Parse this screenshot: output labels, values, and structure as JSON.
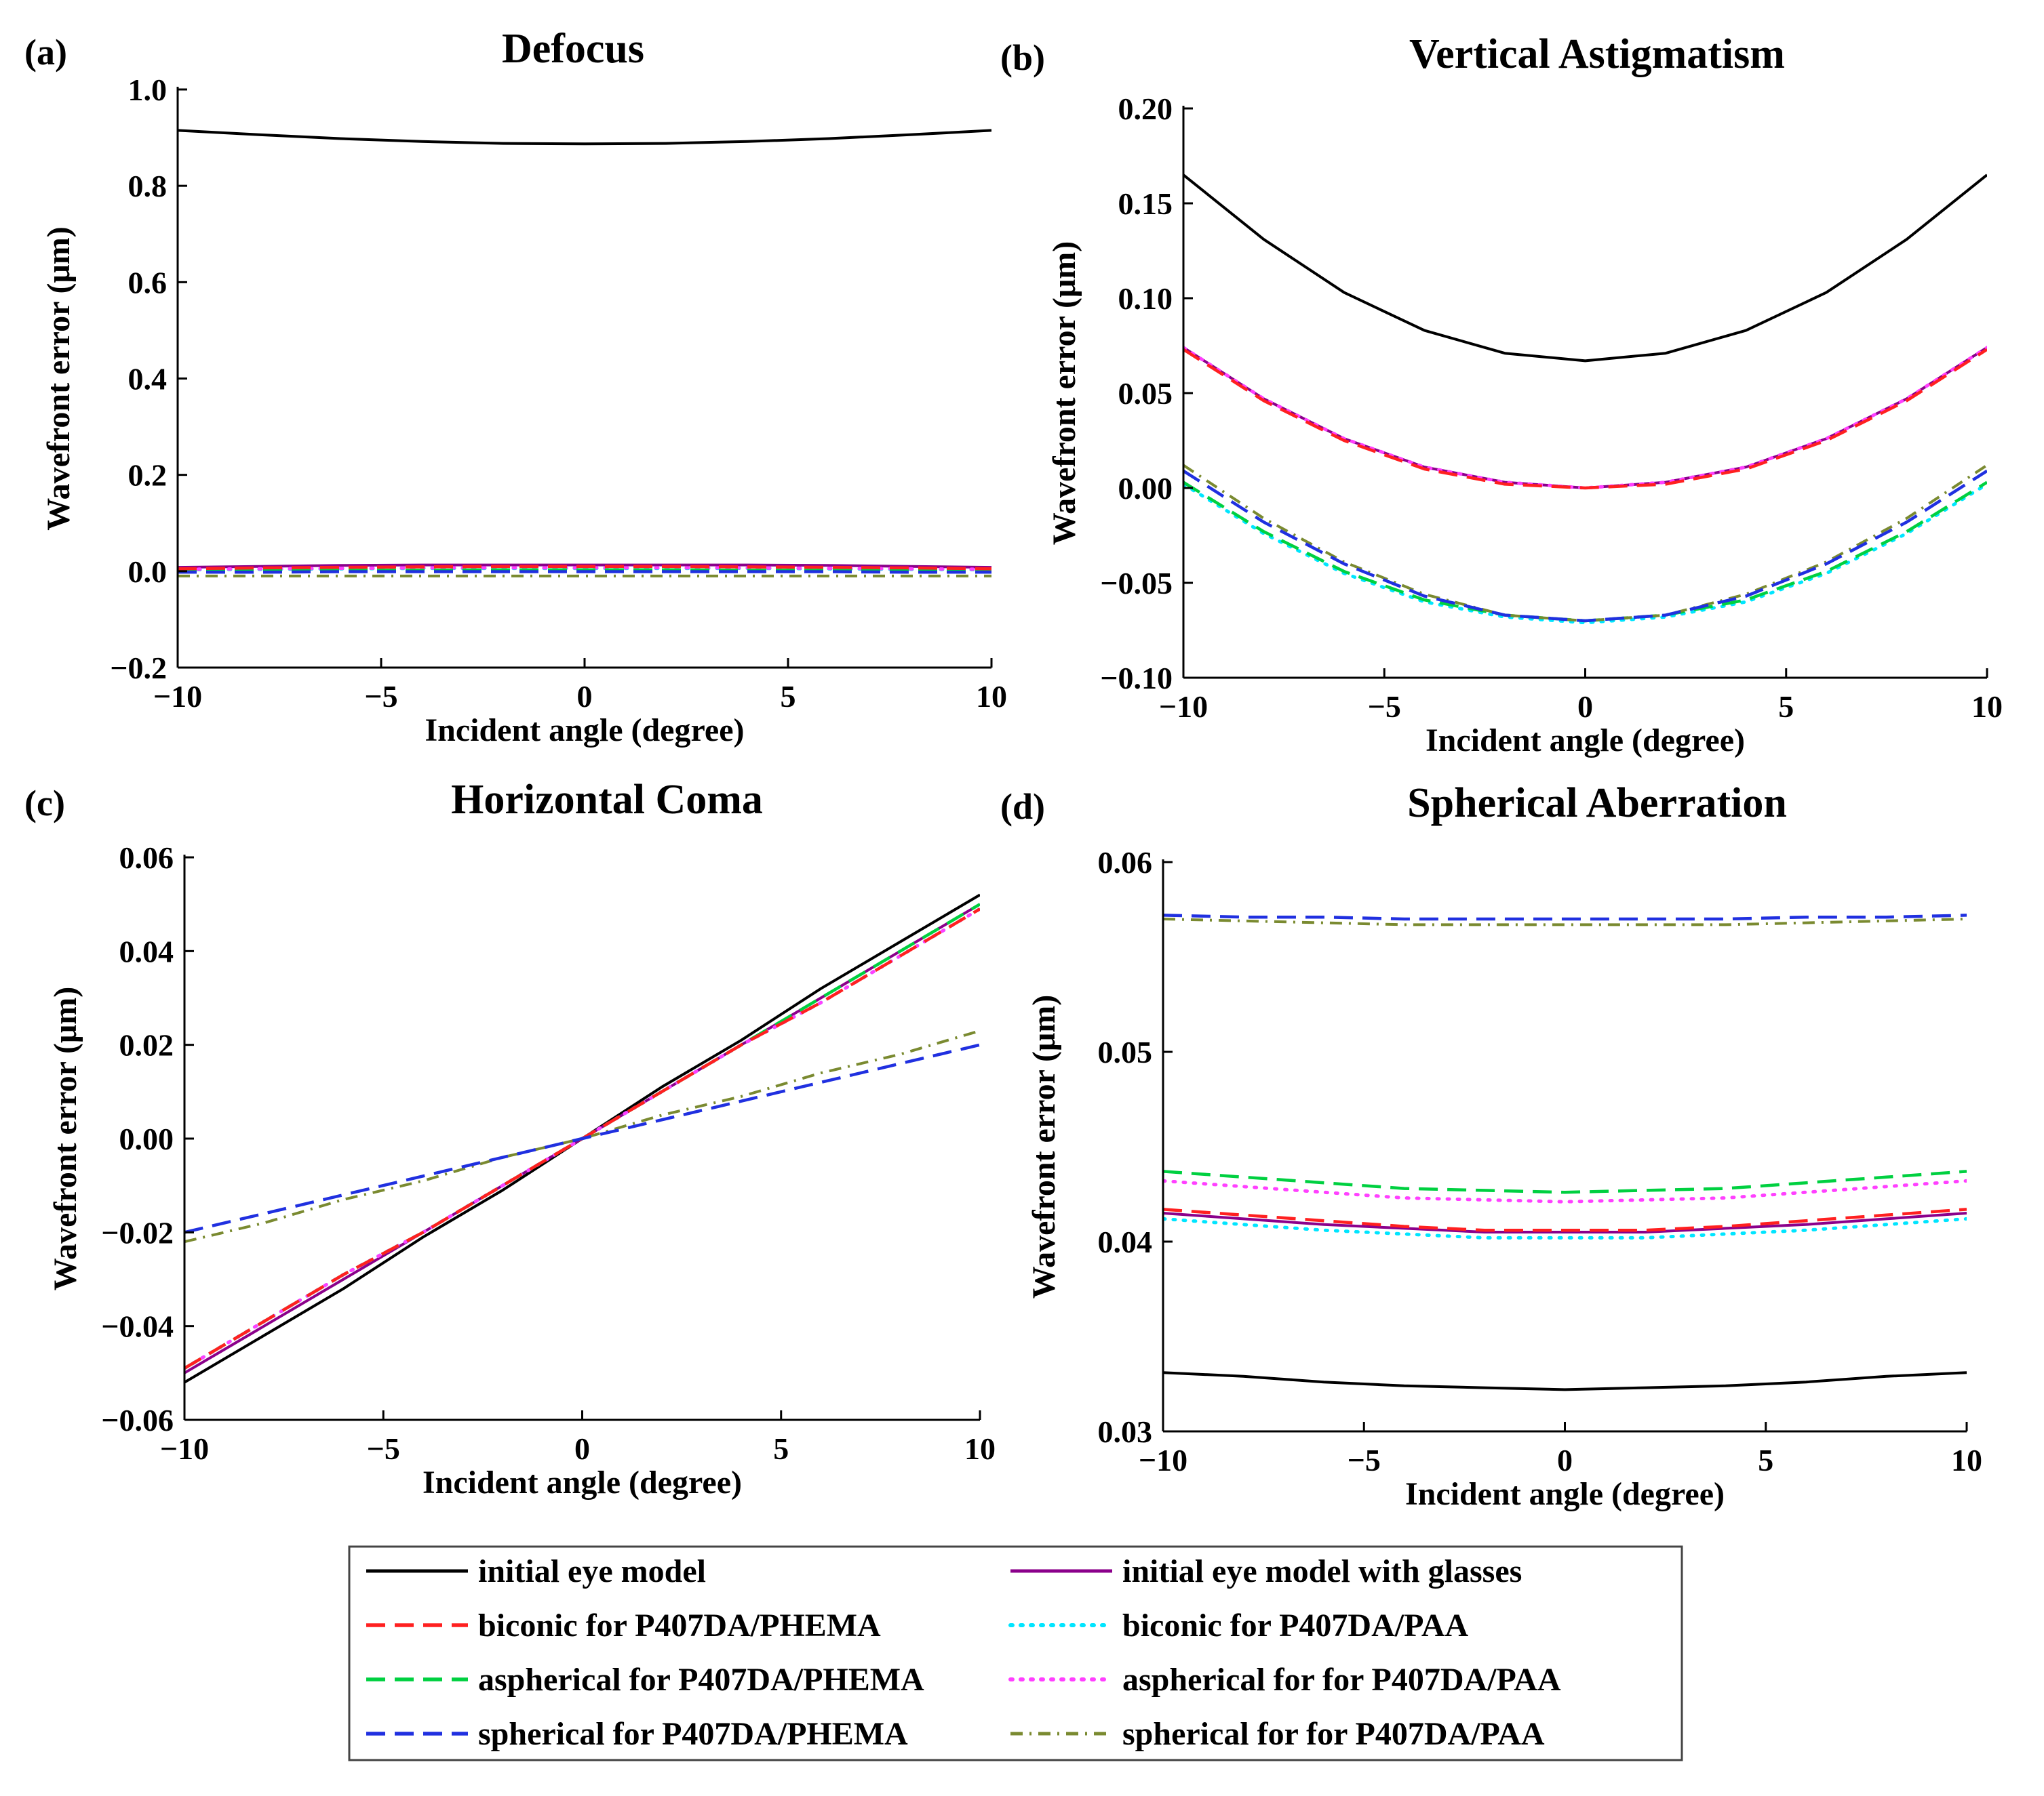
{
  "figure": {
    "x_label_shared": "Incident angle (degree)",
    "y_label_shared": "Wavefront error (μm)"
  },
  "legend": [
    {
      "key": "initial",
      "label": "initial eye model",
      "color": "#000000",
      "style": "solid"
    },
    {
      "key": "glasses",
      "label": "initial eye model with glasses",
      "color": "#8B008B",
      "style": "solid"
    },
    {
      "key": "biconic_phema",
      "label": "biconic for P407DA/PHEMA",
      "color": "#FF2020",
      "style": "dash"
    },
    {
      "key": "biconic_paa",
      "label": "biconic for P407DA/PAA",
      "color": "#00E5FF",
      "style": "dot"
    },
    {
      "key": "aspherical_phema",
      "label": "aspherical for P407DA/PHEMA",
      "color": "#00D040",
      "style": "dash"
    },
    {
      "key": "aspherical_paa",
      "label": "aspherical for for P407DA/PAA",
      "color": "#FF40FF",
      "style": "dot"
    },
    {
      "key": "spherical_phema",
      "label": "spherical for P407DA/PHEMA",
      "color": "#2030E0",
      "style": "dash"
    },
    {
      "key": "spherical_paa",
      "label": "spherical for for P407DA/PAA",
      "color": "#7A8A30",
      "style": "dashdot"
    }
  ],
  "chart_data": [
    {
      "id": "a",
      "letter": "(a)",
      "type": "line",
      "title": "Defocus",
      "xlabel": "Incident angle (degree)",
      "ylabel": "Wavefront error (μm)",
      "xlim": [
        -10,
        10
      ],
      "ylim": [
        -0.2,
        1.0
      ],
      "xticks": [
        -10,
        -5,
        0,
        5,
        10
      ],
      "xtick_labels": [
        "−10",
        "−5",
        "0",
        "5",
        "10"
      ],
      "yticks": [
        -0.2,
        0.0,
        0.2,
        0.4,
        0.6,
        0.8,
        1.0
      ],
      "ytick_labels": [
        "−0.2",
        "0.0",
        "0.2",
        "0.4",
        "0.6",
        "0.8",
        "1.0"
      ],
      "x": [
        -10,
        -8,
        -6,
        -4,
        -2,
        0,
        2,
        4,
        6,
        8,
        10
      ],
      "series": [
        {
          "key": "initial",
          "values": [
            0.915,
            0.906,
            0.898,
            0.892,
            0.888,
            0.887,
            0.888,
            0.892,
            0.898,
            0.906,
            0.915
          ]
        },
        {
          "key": "glasses",
          "values": [
            0.008,
            0.01,
            0.012,
            0.013,
            0.013,
            0.013,
            0.013,
            0.013,
            0.012,
            0.01,
            0.008
          ]
        },
        {
          "key": "biconic_phema",
          "values": [
            0.005,
            0.007,
            0.008,
            0.009,
            0.01,
            0.01,
            0.01,
            0.009,
            0.008,
            0.007,
            0.005
          ]
        },
        {
          "key": "biconic_paa",
          "values": [
            0.003,
            0.004,
            0.005,
            0.006,
            0.006,
            0.006,
            0.006,
            0.006,
            0.005,
            0.004,
            0.003
          ]
        },
        {
          "key": "aspherical_phema",
          "values": [
            0.0,
            0.001,
            0.002,
            0.002,
            0.003,
            0.003,
            0.003,
            0.002,
            0.002,
            0.001,
            0.0
          ]
        },
        {
          "key": "aspherical_paa",
          "values": [
            0.004,
            0.005,
            0.006,
            0.007,
            0.007,
            0.007,
            0.007,
            0.007,
            0.006,
            0.005,
            0.004
          ]
        },
        {
          "key": "spherical_phema",
          "values": [
            -0.002,
            -0.002,
            -0.001,
            -0.001,
            -0.001,
            -0.001,
            -0.001,
            -0.001,
            -0.001,
            -0.002,
            -0.002
          ]
        },
        {
          "key": "spherical_paa",
          "values": [
            -0.01,
            -0.01,
            -0.01,
            -0.01,
            -0.01,
            -0.01,
            -0.01,
            -0.01,
            -0.01,
            -0.01,
            -0.01
          ]
        }
      ]
    },
    {
      "id": "b",
      "letter": "(b)",
      "type": "line",
      "title": "Vertical Astigmatism",
      "xlabel": "Incident angle (degree)",
      "ylabel": "Wavefront error (μm)",
      "xlim": [
        -10,
        10
      ],
      "ylim": [
        -0.1,
        0.2
      ],
      "xticks": [
        -10,
        -5,
        0,
        5,
        10
      ],
      "xtick_labels": [
        "−10",
        "−5",
        "0",
        "5",
        "10"
      ],
      "yticks": [
        -0.1,
        -0.05,
        0.0,
        0.05,
        0.1,
        0.15,
        0.2
      ],
      "ytick_labels": [
        "−0.10",
        "−0.05",
        "0.00",
        "0.05",
        "0.10",
        "0.15",
        "0.20"
      ],
      "x": [
        -10,
        -8,
        -6,
        -4,
        -2,
        0,
        2,
        4,
        6,
        8,
        10
      ],
      "series": [
        {
          "key": "initial",
          "values": [
            0.165,
            0.131,
            0.103,
            0.083,
            0.071,
            0.067,
            0.071,
            0.083,
            0.103,
            0.131,
            0.165
          ]
        },
        {
          "key": "glasses",
          "values": [
            0.074,
            0.047,
            0.026,
            0.011,
            0.003,
            0.0,
            0.003,
            0.011,
            0.026,
            0.047,
            0.074
          ]
        },
        {
          "key": "biconic_phema",
          "values": [
            0.073,
            0.046,
            0.025,
            0.01,
            0.002,
            0.0,
            0.002,
            0.01,
            0.025,
            0.046,
            0.073
          ]
        },
        {
          "key": "biconic_paa",
          "values": [
            0.002,
            -0.024,
            -0.045,
            -0.06,
            -0.068,
            -0.071,
            -0.068,
            -0.06,
            -0.045,
            -0.024,
            0.002
          ]
        },
        {
          "key": "aspherical_phema",
          "values": [
            0.003,
            -0.023,
            -0.044,
            -0.059,
            -0.067,
            -0.07,
            -0.067,
            -0.059,
            -0.044,
            -0.023,
            0.003
          ]
        },
        {
          "key": "aspherical_paa",
          "values": [
            0.074,
            0.047,
            0.026,
            0.011,
            0.003,
            0.0,
            0.003,
            0.011,
            0.026,
            0.047,
            0.074
          ]
        },
        {
          "key": "spherical_phema",
          "values": [
            0.009,
            -0.018,
            -0.04,
            -0.057,
            -0.067,
            -0.07,
            -0.067,
            -0.057,
            -0.04,
            -0.018,
            0.009
          ]
        },
        {
          "key": "spherical_paa",
          "values": [
            0.012,
            -0.016,
            -0.039,
            -0.056,
            -0.067,
            -0.07,
            -0.067,
            -0.056,
            -0.039,
            -0.016,
            0.012
          ]
        }
      ]
    },
    {
      "id": "c",
      "letter": "(c)",
      "type": "line",
      "title": "Horizontal Coma",
      "xlabel": "Incident angle (degree)",
      "ylabel": "Wavefront error (μm)",
      "xlim": [
        -10,
        10
      ],
      "ylim": [
        -0.06,
        0.06
      ],
      "xticks": [
        -10,
        -5,
        0,
        5,
        10
      ],
      "xtick_labels": [
        "−10",
        "−5",
        "0",
        "5",
        "10"
      ],
      "yticks": [
        -0.06,
        -0.04,
        -0.02,
        0.0,
        0.02,
        0.04,
        0.06
      ],
      "ytick_labels": [
        "−0.06",
        "−0.04",
        "−0.02",
        "0.00",
        "0.02",
        "0.04",
        "0.06"
      ],
      "x": [
        -10,
        -8,
        -6,
        -4,
        -2,
        0,
        2,
        4,
        6,
        8,
        10
      ],
      "series": [
        {
          "key": "initial",
          "values": [
            -0.052,
            -0.042,
            -0.032,
            -0.021,
            -0.011,
            0.0,
            0.011,
            0.021,
            0.032,
            0.042,
            0.052
          ]
        },
        {
          "key": "glasses",
          "values": [
            -0.05,
            -0.04,
            -0.03,
            -0.02,
            -0.01,
            0.0,
            0.01,
            0.02,
            0.03,
            0.04,
            0.05
          ]
        },
        {
          "key": "biconic_phema",
          "values": [
            -0.049,
            -0.039,
            -0.029,
            -0.02,
            -0.01,
            0.0,
            0.01,
            0.02,
            0.029,
            0.039,
            0.049
          ]
        },
        {
          "key": "biconic_paa",
          "values": [
            -0.049,
            -0.039,
            -0.029,
            -0.02,
            -0.01,
            0.0,
            0.01,
            0.02,
            0.029,
            0.039,
            0.049
          ]
        },
        {
          "key": "aspherical_phema",
          "values": [
            -0.049,
            -0.039,
            -0.029,
            -0.02,
            -0.01,
            0.0,
            0.01,
            0.02,
            0.03,
            0.04,
            0.05
          ]
        },
        {
          "key": "aspherical_paa",
          "values": [
            -0.049,
            -0.039,
            -0.029,
            -0.02,
            -0.01,
            0.0,
            0.01,
            0.02,
            0.029,
            0.039,
            0.049
          ]
        },
        {
          "key": "spherical_phema",
          "values": [
            -0.02,
            -0.016,
            -0.012,
            -0.008,
            -0.004,
            0.0,
            0.004,
            0.008,
            0.012,
            0.016,
            0.02
          ]
        },
        {
          "key": "spherical_paa",
          "values": [
            -0.022,
            -0.018,
            -0.013,
            -0.009,
            -0.004,
            0.0,
            0.005,
            0.009,
            0.014,
            0.018,
            0.023
          ]
        }
      ]
    },
    {
      "id": "d",
      "letter": "(d)",
      "type": "line",
      "title": "Spherical Aberration",
      "xlabel": "Incident angle (degree)",
      "ylabel": "Wavefront error (μm)",
      "xlim": [
        -10,
        10
      ],
      "ylim": [
        0.03,
        0.06
      ],
      "xticks": [
        -10,
        -5,
        0,
        5,
        10
      ],
      "xtick_labels": [
        "−10",
        "−5",
        "0",
        "5",
        "10"
      ],
      "yticks": [
        0.03,
        0.04,
        0.05,
        0.06
      ],
      "ytick_labels": [
        "0.03",
        "0.04",
        "0.05",
        "0.06"
      ],
      "x": [
        -10,
        -8,
        -6,
        -4,
        -2,
        0,
        2,
        4,
        6,
        8,
        10
      ],
      "series": [
        {
          "key": "initial",
          "values": [
            0.0331,
            0.0329,
            0.0326,
            0.0324,
            0.0323,
            0.0322,
            0.0323,
            0.0324,
            0.0326,
            0.0329,
            0.0331
          ]
        },
        {
          "key": "glasses",
          "values": [
            0.0415,
            0.0412,
            0.0409,
            0.0407,
            0.0405,
            0.0405,
            0.0405,
            0.0407,
            0.0409,
            0.0412,
            0.0415
          ]
        },
        {
          "key": "biconic_phema",
          "values": [
            0.0417,
            0.0414,
            0.0411,
            0.0408,
            0.0406,
            0.0406,
            0.0406,
            0.0408,
            0.0411,
            0.0414,
            0.0417
          ]
        },
        {
          "key": "biconic_paa",
          "values": [
            0.0412,
            0.0409,
            0.0406,
            0.0404,
            0.0402,
            0.0402,
            0.0402,
            0.0404,
            0.0406,
            0.0409,
            0.0412
          ]
        },
        {
          "key": "aspherical_phema",
          "values": [
            0.0437,
            0.0434,
            0.0431,
            0.0428,
            0.0427,
            0.0426,
            0.0427,
            0.0428,
            0.0431,
            0.0434,
            0.0437
          ]
        },
        {
          "key": "aspherical_paa",
          "values": [
            0.0432,
            0.0429,
            0.0426,
            0.0423,
            0.0422,
            0.0421,
            0.0422,
            0.0423,
            0.0426,
            0.0429,
            0.0432
          ]
        },
        {
          "key": "spherical_phema",
          "values": [
            0.0572,
            0.0571,
            0.0571,
            0.057,
            0.057,
            0.057,
            0.057,
            0.057,
            0.0571,
            0.0571,
            0.0572
          ]
        },
        {
          "key": "spherical_paa",
          "values": [
            0.057,
            0.0569,
            0.0568,
            0.0567,
            0.0567,
            0.0567,
            0.0567,
            0.0567,
            0.0568,
            0.0569,
            0.057
          ]
        }
      ]
    }
  ]
}
